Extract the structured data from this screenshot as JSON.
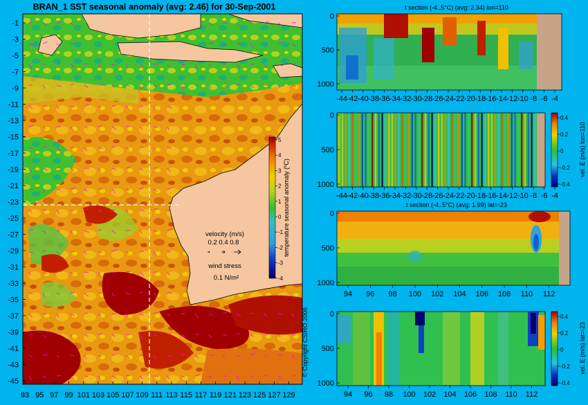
{
  "main_map": {
    "title": "BRAN_1  SST seasonal anomaly (avg: 2.46) for 30-Sep-2001",
    "lat_labels": [
      "-1",
      "-3",
      "-5",
      "-7",
      "-9",
      "-11",
      "-13",
      "-15",
      "-17",
      "-19",
      "-21",
      "-23",
      "-25",
      "-27",
      "-29",
      "-31",
      "-33",
      "-35",
      "-37",
      "-39",
      "-41",
      "-43",
      "-45"
    ],
    "lon_labels": [
      "93",
      "95",
      "97",
      "99",
      "101",
      "103",
      "105",
      "107",
      "109",
      "111",
      "113",
      "115",
      "117",
      "119",
      "121",
      "123",
      "125",
      "127",
      "129"
    ],
    "velocity_title": "velocity (m/s)",
    "velocity_scale": "0.2 0.4 0.8",
    "wind_title": "wind stress",
    "wind_value": "0.1 N/m²",
    "colorbar_label": "temperature seasonal anomaly (ºC)",
    "colorbar_ticks": [
      "5",
      "4",
      "3",
      "2",
      "1",
      "0",
      "-1",
      "-2",
      "-3",
      "-4"
    ],
    "copyright": "© Copyright CSIRO 2006"
  },
  "panels": {
    "p1_title": "t section (-4..5°C) (avg: 2.34) lon=110",
    "p1_y": [
      "0",
      "500",
      "1000"
    ],
    "p1_x": [
      "-44",
      "-42",
      "-40",
      "-38",
      "-36",
      "-34",
      "-32",
      "-30",
      "-28",
      "-26",
      "-24",
      "-22",
      "-20",
      "-18",
      "-16",
      "-14",
      "-12",
      "-10",
      "-8",
      "-6",
      "-4"
    ],
    "p2_y": [
      "0",
      "500",
      "1000"
    ],
    "p2_x": [
      "-44",
      "-42",
      "-40",
      "-38",
      "-36",
      "-34",
      "-32",
      "-30",
      "-28",
      "-26",
      "-24",
      "-22",
      "-20",
      "-18",
      "-16",
      "-14",
      "-12",
      "-10",
      "-8",
      "-6",
      "-4"
    ],
    "p2_cbar_label": "vel. E (m/s) lon=110",
    "p2_cbar_ticks": [
      "0.4",
      "0.2",
      "0",
      "-0.2",
      "-0.4"
    ],
    "p3_title": "t section (-4..5°C) (avg: 1.99) lat=-23",
    "p3_y": [
      "0",
      "500",
      "1000"
    ],
    "p3_x": [
      "94",
      "96",
      "98",
      "100",
      "102",
      "104",
      "106",
      "108",
      "110",
      "112"
    ],
    "p4_y": [
      "0",
      "500",
      "1000"
    ],
    "p4_x": [
      "94",
      "96",
      "98",
      "100",
      "102",
      "104",
      "106",
      "108",
      "110",
      "112"
    ],
    "p4_cbar_label": "vel. E (m/s) lat=-23",
    "p4_cbar_ticks": [
      "0.4",
      "0.2",
      "0",
      "-0.2",
      "-0.4"
    ]
  },
  "colors": {
    "background": "#00b4ee",
    "land": "#f5c6a0",
    "section_land": "#c7a488",
    "dark_red": "#a00000",
    "orange": "#f08000",
    "yellow": "#f0d000",
    "green": "#30c030",
    "cyan": "#30c0e0",
    "blue": "#1030c0",
    "navy": "#000070",
    "arrow": "#ff00ff"
  }
}
